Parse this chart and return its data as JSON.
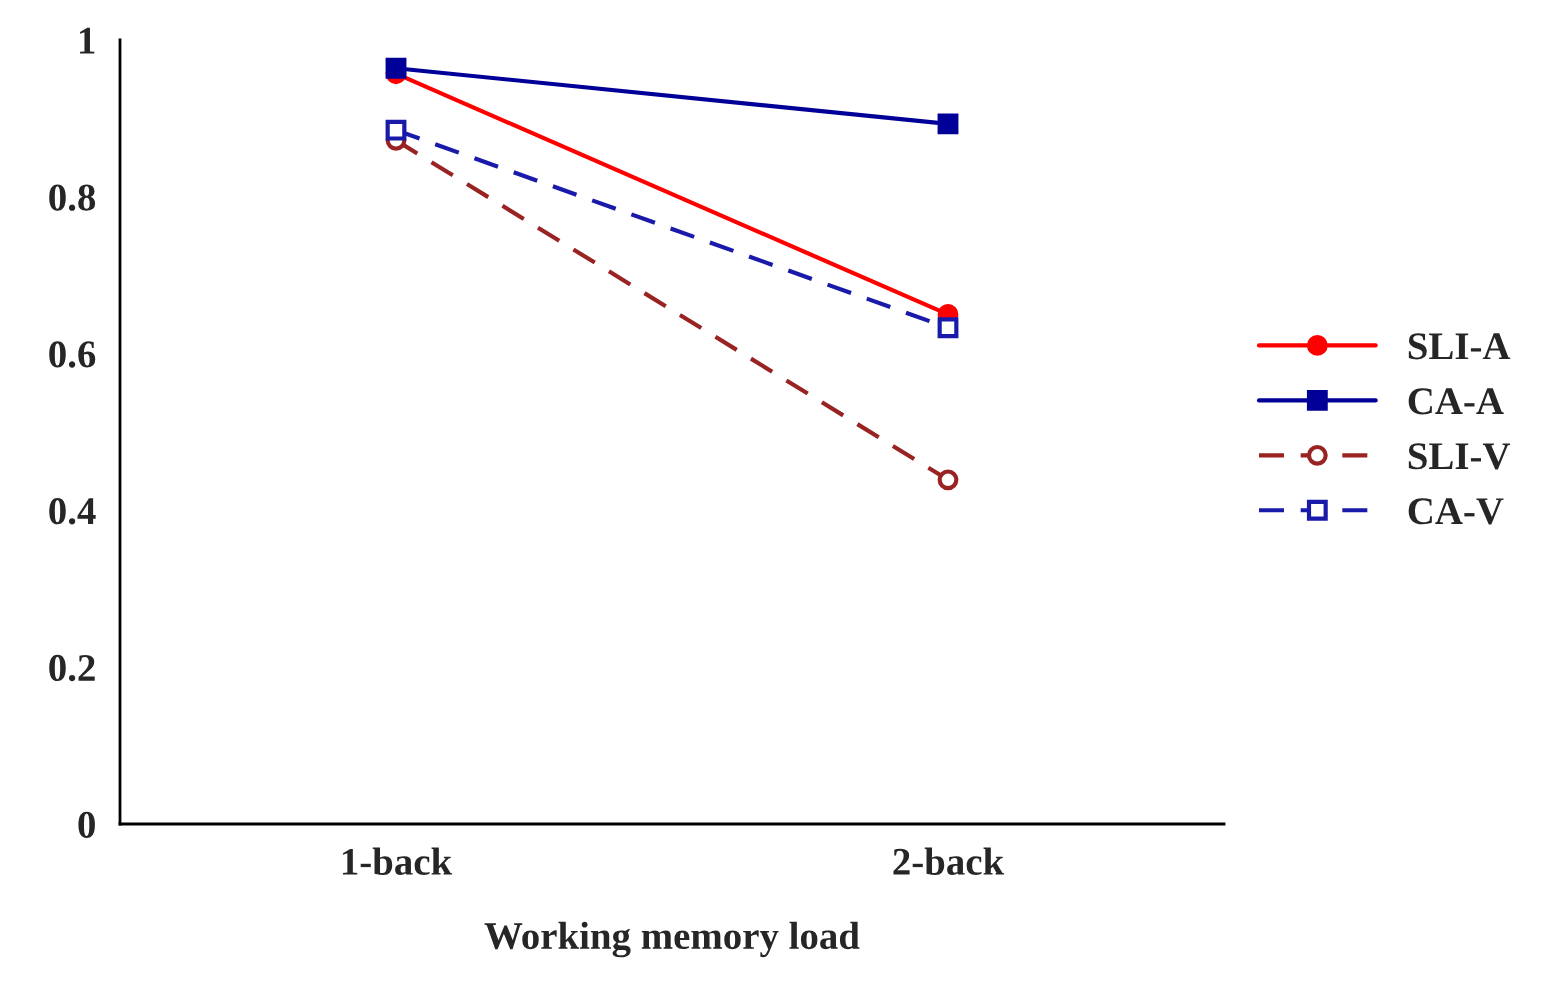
{
  "chart_data": {
    "type": "line",
    "xlabel": "Working memory load",
    "categories": [
      "1-back",
      "2-back"
    ],
    "series": [
      {
        "name": "SLI-A",
        "color": "#ff0000",
        "values": [
          0.957,
          0.65
        ],
        "marker": "circle",
        "line_style": "solid"
      },
      {
        "name": "CA-A",
        "color": "#000099",
        "values": [
          0.964,
          0.893
        ],
        "marker": "square",
        "line_style": "solid"
      },
      {
        "name": "SLI-V",
        "color": "#992222",
        "values": [
          0.872,
          0.439
        ],
        "marker": "circle",
        "line_style": "dashed"
      },
      {
        "name": "CA-V",
        "color": "#1a1aaa",
        "values": [
          0.885,
          0.633
        ],
        "marker": "square",
        "line_style": "dashed"
      }
    ],
    "ylim": [
      0,
      1
    ],
    "yticks": [
      0,
      0.2,
      0.4,
      0.6,
      0.8,
      1
    ],
    "grid": false,
    "legend": "right"
  }
}
